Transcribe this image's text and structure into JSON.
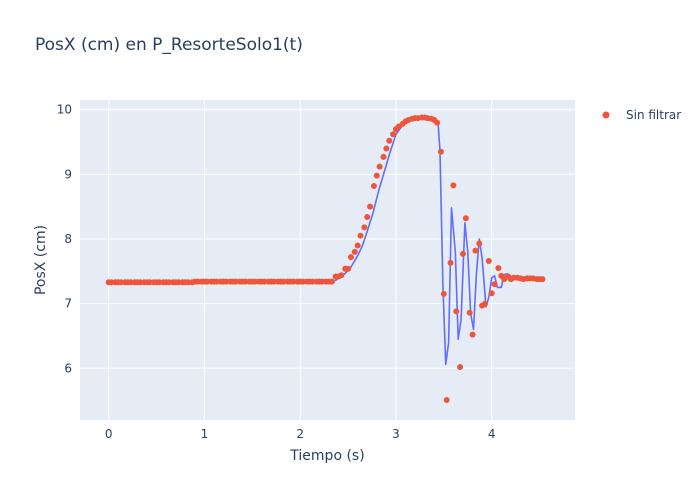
{
  "chart_data": {
    "type": "line",
    "title": "PosX (cm) en P_ResorteSolo1(t)",
    "xlabel": "Tiempo (s)",
    "ylabel": "PosX (cm)",
    "xlim": [
      -0.3,
      4.87
    ],
    "ylim": [
      5.2,
      10.15
    ],
    "x_ticks": [
      0,
      1,
      2,
      3,
      4
    ],
    "y_ticks": [
      6,
      7,
      8,
      9,
      10
    ],
    "grid": true,
    "legend_position": "top-right",
    "colors": {
      "line": "#636efa",
      "markers": "#ef553b",
      "plot_bg": "#e5ecf6",
      "grid": "#ffffff",
      "text": "#2a3f5f"
    },
    "series": [
      {
        "name": "",
        "mode": "lines",
        "points": [
          [
            0.0,
            7.33
          ],
          [
            0.5,
            7.33
          ],
          [
            1.0,
            7.34
          ],
          [
            1.5,
            7.34
          ],
          [
            2.0,
            7.34
          ],
          [
            2.3,
            7.34
          ],
          [
            2.37,
            7.36
          ],
          [
            2.45,
            7.44
          ],
          [
            2.52,
            7.54
          ],
          [
            2.6,
            7.74
          ],
          [
            2.65,
            7.9
          ],
          [
            2.7,
            8.12
          ],
          [
            2.76,
            8.4
          ],
          [
            2.82,
            8.75
          ],
          [
            2.88,
            9.05
          ],
          [
            2.94,
            9.35
          ],
          [
            3.0,
            9.62
          ],
          [
            3.06,
            9.74
          ],
          [
            3.12,
            9.81
          ],
          [
            3.2,
            9.86
          ],
          [
            3.3,
            9.88
          ],
          [
            3.38,
            9.86
          ],
          [
            3.44,
            9.8
          ],
          [
            3.46,
            9.35
          ],
          [
            3.49,
            7.3
          ],
          [
            3.52,
            6.06
          ],
          [
            3.55,
            6.4
          ],
          [
            3.58,
            8.48
          ],
          [
            3.62,
            7.8
          ],
          [
            3.65,
            6.45
          ],
          [
            3.68,
            6.75
          ],
          [
            3.72,
            8.25
          ],
          [
            3.75,
            7.8
          ],
          [
            3.78,
            6.85
          ],
          [
            3.81,
            6.6
          ],
          [
            3.84,
            7.45
          ],
          [
            3.87,
            8.0
          ],
          [
            3.9,
            7.7
          ],
          [
            3.94,
            6.95
          ],
          [
            3.97,
            7.1
          ],
          [
            4.0,
            7.4
          ],
          [
            4.03,
            7.43
          ],
          [
            4.06,
            7.25
          ],
          [
            4.1,
            7.25
          ],
          [
            4.13,
            7.45
          ],
          [
            4.17,
            7.46
          ],
          [
            4.22,
            7.4
          ],
          [
            4.28,
            7.38
          ],
          [
            4.35,
            7.39
          ],
          [
            4.42,
            7.39
          ],
          [
            4.5,
            7.39
          ],
          [
            4.55,
            7.39
          ]
        ]
      },
      {
        "name": "Sin filtrar",
        "mode": "markers",
        "points": [
          [
            0.0,
            7.33
          ],
          [
            0.03,
            7.33
          ],
          [
            0.07,
            7.33
          ],
          [
            0.1,
            7.33
          ],
          [
            0.13,
            7.33
          ],
          [
            0.17,
            7.33
          ],
          [
            0.2,
            7.33
          ],
          [
            0.23,
            7.33
          ],
          [
            0.27,
            7.33
          ],
          [
            0.3,
            7.33
          ],
          [
            0.33,
            7.33
          ],
          [
            0.37,
            7.33
          ],
          [
            0.4,
            7.33
          ],
          [
            0.43,
            7.33
          ],
          [
            0.47,
            7.33
          ],
          [
            0.5,
            7.33
          ],
          [
            0.53,
            7.33
          ],
          [
            0.57,
            7.33
          ],
          [
            0.6,
            7.33
          ],
          [
            0.63,
            7.33
          ],
          [
            0.67,
            7.33
          ],
          [
            0.7,
            7.33
          ],
          [
            0.73,
            7.33
          ],
          [
            0.77,
            7.33
          ],
          [
            0.8,
            7.33
          ],
          [
            0.83,
            7.33
          ],
          [
            0.87,
            7.33
          ],
          [
            0.9,
            7.34
          ],
          [
            0.93,
            7.34
          ],
          [
            0.97,
            7.34
          ],
          [
            1.0,
            7.34
          ],
          [
            1.03,
            7.34
          ],
          [
            1.07,
            7.34
          ],
          [
            1.1,
            7.34
          ],
          [
            1.13,
            7.34
          ],
          [
            1.17,
            7.34
          ],
          [
            1.2,
            7.34
          ],
          [
            1.23,
            7.34
          ],
          [
            1.27,
            7.34
          ],
          [
            1.3,
            7.34
          ],
          [
            1.33,
            7.34
          ],
          [
            1.37,
            7.34
          ],
          [
            1.4,
            7.34
          ],
          [
            1.43,
            7.34
          ],
          [
            1.47,
            7.34
          ],
          [
            1.5,
            7.34
          ],
          [
            1.53,
            7.34
          ],
          [
            1.57,
            7.34
          ],
          [
            1.6,
            7.34
          ],
          [
            1.63,
            7.34
          ],
          [
            1.67,
            7.34
          ],
          [
            1.7,
            7.34
          ],
          [
            1.73,
            7.34
          ],
          [
            1.77,
            7.34
          ],
          [
            1.8,
            7.34
          ],
          [
            1.83,
            7.34
          ],
          [
            1.87,
            7.34
          ],
          [
            1.9,
            7.34
          ],
          [
            1.93,
            7.34
          ],
          [
            1.97,
            7.34
          ],
          [
            2.0,
            7.34
          ],
          [
            2.03,
            7.34
          ],
          [
            2.07,
            7.34
          ],
          [
            2.1,
            7.34
          ],
          [
            2.13,
            7.34
          ],
          [
            2.17,
            7.34
          ],
          [
            2.2,
            7.34
          ],
          [
            2.23,
            7.34
          ],
          [
            2.27,
            7.34
          ],
          [
            2.3,
            7.34
          ],
          [
            2.33,
            7.34
          ],
          [
            2.37,
            7.42
          ],
          [
            2.4,
            7.42
          ],
          [
            2.43,
            7.44
          ],
          [
            2.47,
            7.54
          ],
          [
            2.5,
            7.54
          ],
          [
            2.53,
            7.72
          ],
          [
            2.57,
            7.8
          ],
          [
            2.6,
            7.9
          ],
          [
            2.63,
            8.05
          ],
          [
            2.67,
            8.18
          ],
          [
            2.7,
            8.34
          ],
          [
            2.73,
            8.5
          ],
          [
            2.77,
            8.82
          ],
          [
            2.8,
            8.98
          ],
          [
            2.83,
            9.12
          ],
          [
            2.87,
            9.27
          ],
          [
            2.9,
            9.4
          ],
          [
            2.93,
            9.52
          ],
          [
            2.97,
            9.62
          ],
          [
            3.0,
            9.7
          ],
          [
            3.03,
            9.74
          ],
          [
            3.07,
            9.78
          ],
          [
            3.1,
            9.82
          ],
          [
            3.13,
            9.84
          ],
          [
            3.17,
            9.86
          ],
          [
            3.2,
            9.87
          ],
          [
            3.23,
            9.87
          ],
          [
            3.27,
            9.88
          ],
          [
            3.3,
            9.88
          ],
          [
            3.33,
            9.87
          ],
          [
            3.37,
            9.86
          ],
          [
            3.4,
            9.84
          ],
          [
            3.43,
            9.8
          ],
          [
            3.47,
            9.35
          ],
          [
            3.5,
            7.15
          ],
          [
            3.53,
            5.51
          ],
          [
            3.57,
            7.63
          ],
          [
            3.6,
            8.83
          ],
          [
            3.63,
            6.88
          ],
          [
            3.67,
            6.02
          ],
          [
            3.7,
            7.77
          ],
          [
            3.73,
            8.32
          ],
          [
            3.77,
            6.86
          ],
          [
            3.8,
            6.52
          ],
          [
            3.83,
            7.82
          ],
          [
            3.87,
            7.93
          ],
          [
            3.9,
            6.97
          ],
          [
            3.93,
            7.0
          ],
          [
            3.97,
            7.66
          ],
          [
            4.0,
            7.16
          ],
          [
            4.03,
            7.3
          ],
          [
            4.07,
            7.55
          ],
          [
            4.1,
            7.43
          ],
          [
            4.13,
            7.38
          ],
          [
            4.17,
            7.42
          ],
          [
            4.2,
            7.38
          ],
          [
            4.23,
            7.4
          ],
          [
            4.27,
            7.4
          ],
          [
            4.3,
            7.39
          ],
          [
            4.33,
            7.38
          ],
          [
            4.37,
            7.39
          ],
          [
            4.4,
            7.39
          ],
          [
            4.43,
            7.39
          ],
          [
            4.47,
            7.38
          ],
          [
            4.5,
            7.38
          ],
          [
            4.53,
            7.38
          ]
        ]
      }
    ]
  }
}
